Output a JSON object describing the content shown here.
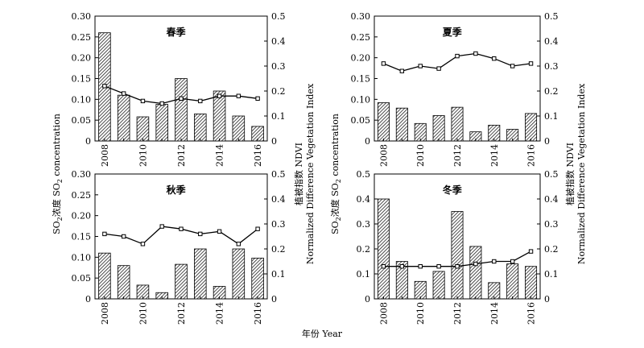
{
  "labels": {
    "left_ylabel_prefix": "SO",
    "left_ylabel_sub": "2",
    "left_ylabel_rest": "浓度 SO",
    "left_ylabel_sub2": "2",
    "left_ylabel_end": " concentration",
    "right_ylabel_line1": "植被指数 NDVI",
    "right_ylabel_line2": "Normalized Difference Vegetation Index",
    "xlabel": "年份 Year"
  },
  "chart_data": [
    {
      "type": "bar",
      "title": "春季",
      "years": [
        2008,
        2009,
        2010,
        2011,
        2012,
        2013,
        2014,
        2015,
        2016
      ],
      "xticks": [
        "2008",
        "2010",
        "2012",
        "2014",
        "2016"
      ],
      "so2": [
        0.26,
        0.11,
        0.058,
        0.088,
        0.15,
        0.065,
        0.12,
        0.06,
        0.035
      ],
      "ndvi": [
        0.22,
        0.19,
        0.16,
        0.15,
        0.17,
        0.16,
        0.18,
        0.18,
        0.17
      ],
      "ylim_left": [
        0,
        0.3
      ],
      "yticks_left": [
        "0",
        "0.05",
        "0.10",
        "0.15",
        "0.20",
        "0.25",
        "0.30"
      ],
      "ylim_right": [
        0,
        0.5
      ],
      "yticks_right": [
        "0",
        "0.1",
        "0.2",
        "0.3",
        "0.4",
        "0.5"
      ]
    },
    {
      "type": "bar",
      "title": "夏季",
      "years": [
        2008,
        2009,
        2010,
        2011,
        2012,
        2013,
        2014,
        2015,
        2016
      ],
      "xticks": [
        "2008",
        "2010",
        "2012",
        "2014",
        "2016"
      ],
      "so2": [
        0.092,
        0.079,
        0.042,
        0.061,
        0.081,
        0.022,
        0.038,
        0.028,
        0.066
      ],
      "ndvi": [
        0.31,
        0.28,
        0.3,
        0.29,
        0.34,
        0.35,
        0.33,
        0.3,
        0.31
      ],
      "ylim_left": [
        0,
        0.3
      ],
      "yticks_left": [
        "0",
        "0.05",
        "0.10",
        "0.15",
        "0.20",
        "0.25",
        "0.30"
      ],
      "ylim_right": [
        0,
        0.5
      ],
      "yticks_right": [
        "0",
        "0.1",
        "0.2",
        "0.3",
        "0.4",
        "0.5"
      ]
    },
    {
      "type": "bar",
      "title": "秋季",
      "years": [
        2008,
        2009,
        2010,
        2011,
        2012,
        2013,
        2014,
        2015,
        2016
      ],
      "xticks": [
        "2008",
        "2010",
        "2012",
        "2014",
        "2016"
      ],
      "so2": [
        0.11,
        0.08,
        0.033,
        0.015,
        0.083,
        0.12,
        0.03,
        0.12,
        0.098
      ],
      "ndvi": [
        0.26,
        0.25,
        0.22,
        0.29,
        0.28,
        0.26,
        0.27,
        0.22,
        0.28
      ],
      "ylim_left": [
        0,
        0.3
      ],
      "yticks_left": [
        "0",
        "0.05",
        "0.10",
        "0.15",
        "0.20",
        "0.25",
        "0.30"
      ],
      "ylim_right": [
        0,
        0.5
      ],
      "yticks_right": [
        "0",
        "0.1",
        "0.2",
        "0.3",
        "0.4",
        "0.5"
      ]
    },
    {
      "type": "bar",
      "title": "冬季",
      "years": [
        2008,
        2009,
        2010,
        2011,
        2012,
        2013,
        2014,
        2015,
        2016
      ],
      "xticks": [
        "2008",
        "2010",
        "2012",
        "2014",
        "2016"
      ],
      "so2": [
        0.4,
        0.15,
        0.07,
        0.11,
        0.35,
        0.21,
        0.065,
        0.14,
        0.13
      ],
      "ndvi": [
        0.13,
        0.13,
        0.13,
        0.13,
        0.13,
        0.14,
        0.15,
        0.15,
        0.19
      ],
      "ylim_left": [
        0,
        0.5
      ],
      "yticks_left": [
        "0",
        "0.1",
        "0.2",
        "0.3",
        "0.4",
        "0.5"
      ],
      "ylim_right": [
        0,
        0.5
      ],
      "yticks_right": [
        "0",
        "0.1",
        "0.2",
        "0.3",
        "0.4",
        "0.5"
      ]
    }
  ]
}
